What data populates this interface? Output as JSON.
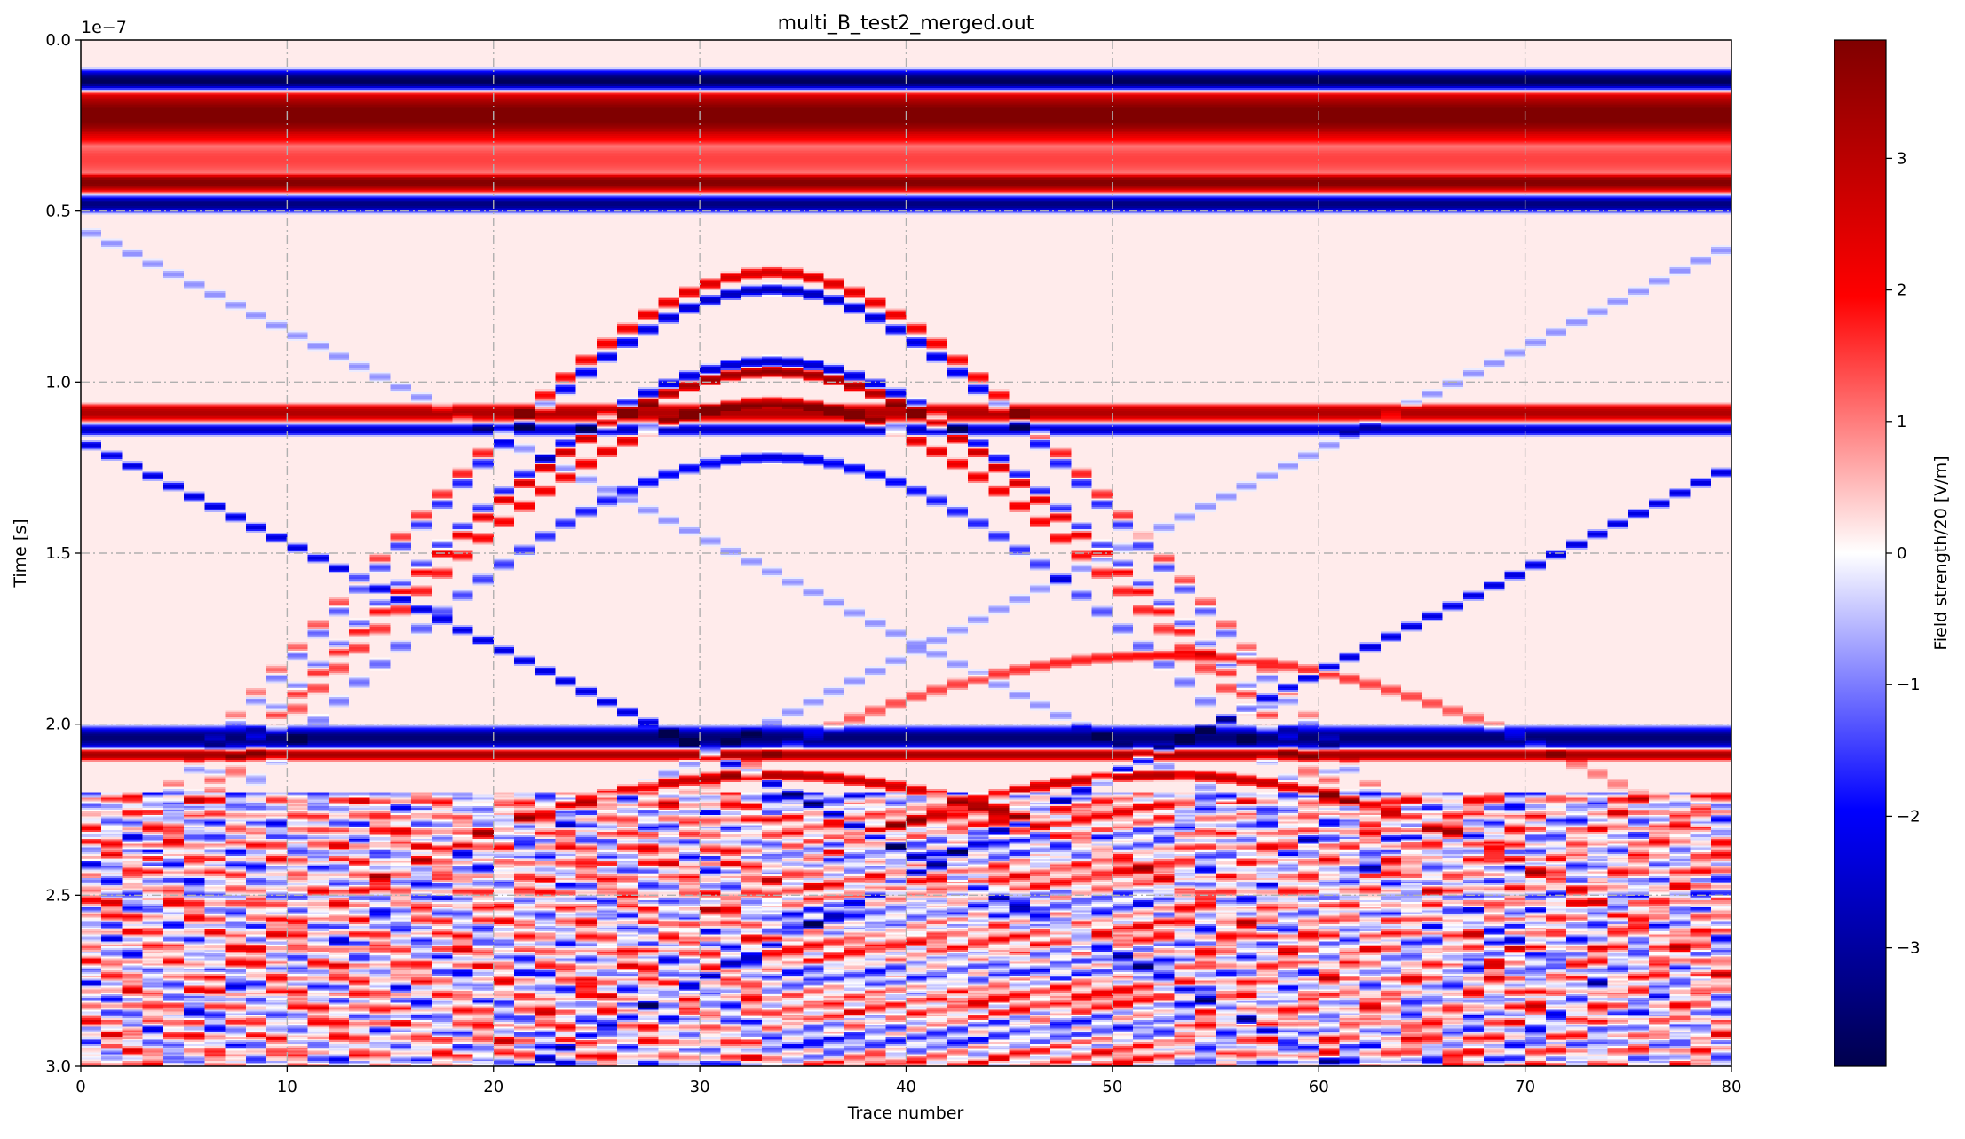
{
  "chart_data": {
    "type": "heatmap",
    "title": "multi_B_test2_merged.out",
    "xlabel": "Trace number",
    "ylabel": "Time [s]",
    "y_offset_text": "1e−7",
    "xlim": [
      0,
      80
    ],
    "ylim": [
      3.0,
      0.0
    ],
    "y_scale_factor": 1e-07,
    "x_ticks": [
      0,
      10,
      20,
      30,
      40,
      50,
      60,
      70,
      80
    ],
    "x_tick_labels": [
      "0",
      "10",
      "20",
      "30",
      "40",
      "50",
      "60",
      "70",
      "80"
    ],
    "y_ticks": [
      0.0,
      0.5,
      1.0,
      1.5,
      2.0,
      2.5,
      3.0
    ],
    "y_tick_labels": [
      "0.0",
      "0.5",
      "1.0",
      "1.5",
      "2.0",
      "2.5",
      "3.0"
    ],
    "grid": true,
    "colormap": "seismic",
    "colormap_colors": [
      "#00004d",
      "#0000ff",
      "#ffffff",
      "#ff0000",
      "#800000"
    ],
    "colorbar": {
      "label": "Field strength/20 [V/m]",
      "range": [
        -3.9,
        3.9
      ],
      "ticks": [
        -3,
        -2,
        -1,
        0,
        1,
        2,
        3
      ],
      "tick_labels": [
        "−3",
        "−2",
        "−1",
        "0",
        "1",
        "2",
        "3"
      ]
    },
    "traces": 80,
    "features": [
      {
        "kind": "horizontal_band",
        "t": 0.12,
        "width": 0.04,
        "value": -3.9
      },
      {
        "kind": "horizontal_band",
        "t": 0.22,
        "width": 0.09,
        "value": 3.9
      },
      {
        "kind": "horizontal_band",
        "t": 0.35,
        "width": 0.07,
        "value": 1.3
      },
      {
        "kind": "horizontal_band",
        "t": 0.42,
        "width": 0.03,
        "value": 3.6
      },
      {
        "kind": "horizontal_band",
        "t": 0.48,
        "width": 0.03,
        "value": -3.5
      },
      {
        "kind": "horizontal_band",
        "t": 1.09,
        "width": 0.03,
        "value": 3.0
      },
      {
        "kind": "horizontal_band",
        "t": 1.14,
        "width": 0.02,
        "value": -2.8
      },
      {
        "kind": "horizontal_band",
        "t": 2.04,
        "width": 0.04,
        "value": -3.6
      },
      {
        "kind": "horizontal_band",
        "t": 2.09,
        "width": 0.02,
        "value": 3.2
      },
      {
        "kind": "hyperbola",
        "x0": 33.5,
        "t0": 0.68,
        "v": 14,
        "value": 2.5
      },
      {
        "kind": "hyperbola",
        "x0": 33.5,
        "t0": 0.73,
        "v": 14,
        "value": -3.0
      },
      {
        "kind": "hyperbola",
        "x0": 33.5,
        "t0": 0.94,
        "v": 14,
        "value": -2.8
      },
      {
        "kind": "hyperbola",
        "x0": 33.5,
        "t0": 0.97,
        "v": 14,
        "value": 3.5
      },
      {
        "kind": "hyperbola",
        "x0": 33.5,
        "t0": 1.06,
        "v": 14,
        "value": 2.8
      },
      {
        "kind": "hyperbola",
        "x0": 33.5,
        "t0": 1.22,
        "v": 14,
        "value": -2.5
      },
      {
        "kind": "hyperbola",
        "x0": 52.5,
        "t0": 1.8,
        "v": 18,
        "value": 1.8
      },
      {
        "kind": "hyperbola",
        "x0": 52.5,
        "t0": 2.15,
        "v": 16,
        "value": 3.0
      },
      {
        "kind": "hyperbola",
        "x0": 33.5,
        "t0": 2.15,
        "v": 16,
        "value": 3.0
      },
      {
        "kind": "diagonal",
        "x_start": 0,
        "t_start": 1.17,
        "slope": 0.03,
        "value": -2.5
      },
      {
        "kind": "diagonal",
        "x_start": 80,
        "t_start": 1.25,
        "slope": -0.03,
        "value": -2.5
      },
      {
        "kind": "diagonal",
        "x_start": 0,
        "t_start": 0.55,
        "slope": 0.03,
        "value": -1.0
      },
      {
        "kind": "diagonal",
        "x_start": 80,
        "t_start": 0.6,
        "slope": -0.03,
        "value": -1.0
      },
      {
        "kind": "late_clutter",
        "t_range": [
          2.2,
          3.0
        ],
        "amplitude": 3.0
      }
    ]
  }
}
